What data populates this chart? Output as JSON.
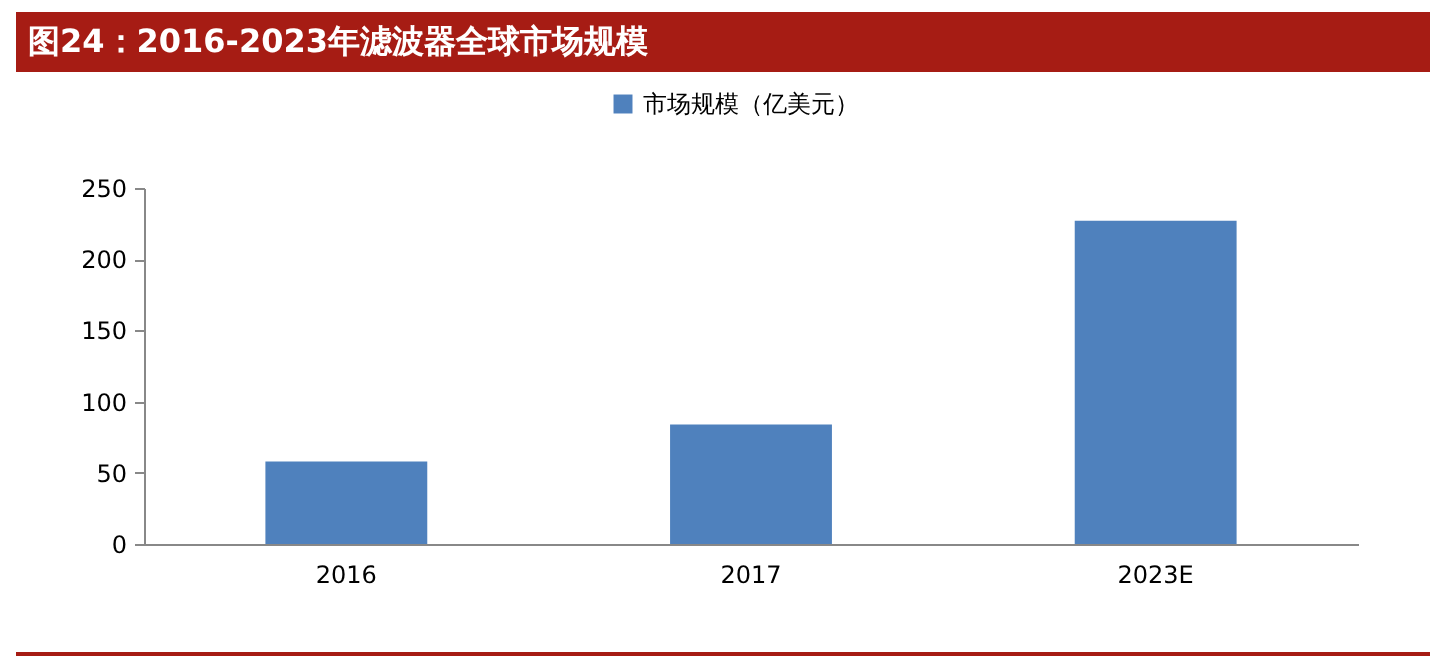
{
  "chart_data": {
    "type": "bar",
    "title": "图24：2016-2023年滤波器全球市场规模",
    "categories": [
      "2016",
      "2017",
      "2023E"
    ],
    "series": [
      {
        "name": "市场规模（亿美元）",
        "color": "#4f81bd",
        "values": [
          58,
          84,
          227
        ]
      }
    ],
    "ylim": [
      0,
      250
    ],
    "yticks": [
      0,
      50,
      100,
      150,
      200,
      250
    ],
    "grid": false,
    "legend": "top"
  }
}
